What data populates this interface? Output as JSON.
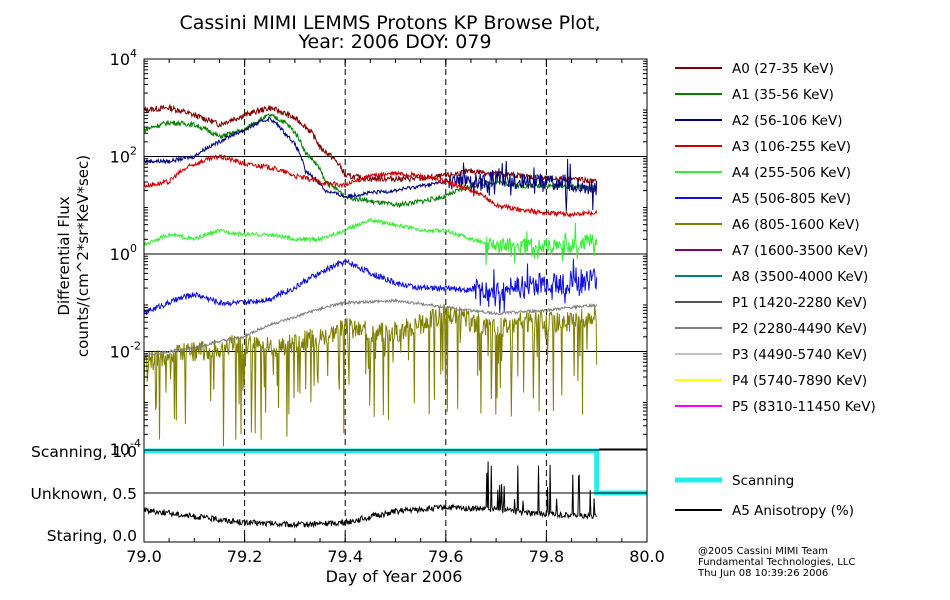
{
  "title_line1": "Cassini MIMI LEMMS Protons KP Browse Plot,",
  "title_line2": "Year: 2006 DOY: 079",
  "credits": [
    "@2005 Cassini MIMI Team",
    "Fundamental Technologies, LLC",
    "Thu Jun 08 10:39:26 2006"
  ],
  "chart_data": [
    {
      "type": "line",
      "ylabel_line1": "Differential Flux",
      "ylabel_line2": "counts/(cm^2*sr*KeV*sec)",
      "yscale": "log",
      "ylim": [
        0.0001,
        10000
      ],
      "xlim": [
        79.0,
        80.0
      ],
      "grid": true,
      "vertical_dashed_at": [
        79.2,
        79.4,
        79.6,
        79.8
      ],
      "horizontal_lines_at": [
        100,
        1,
        0.01
      ],
      "legend_placement": "right",
      "ytick_labels": [
        {
          "value": 10000,
          "base": "10",
          "exp": "4"
        },
        {
          "value": 100,
          "base": "10",
          "exp": "2"
        },
        {
          "value": 1,
          "base": "10",
          "exp": "0"
        },
        {
          "value": 0.01,
          "base": "10",
          "exp": "-2"
        },
        {
          "value": 0.0001,
          "base": "10",
          "exp": "-4"
        }
      ],
      "series": [
        {
          "name": "A0 (27-35 KeV)",
          "color": "#7f0000",
          "noise": 0.06,
          "x": [
            79.0,
            79.05,
            79.1,
            79.15,
            79.2,
            79.25,
            79.3,
            79.35,
            79.4,
            79.45,
            79.5,
            79.55,
            79.6,
            79.65,
            79.7,
            79.75,
            79.8,
            79.85,
            79.9
          ],
          "y": [
            900,
            1000,
            700,
            450,
            700,
            1000,
            600,
            150,
            40,
            35,
            35,
            35,
            40,
            50,
            45,
            40,
            35,
            35,
            30
          ]
        },
        {
          "name": "A1 (35-56 KeV)",
          "color": "#007f00",
          "noise": 0.05,
          "x": [
            79.0,
            79.05,
            79.1,
            79.15,
            79.2,
            79.25,
            79.28,
            79.32,
            79.36,
            79.4,
            79.45,
            79.5,
            79.55,
            79.6,
            79.65,
            79.7,
            79.75,
            79.8,
            79.85,
            79.9
          ],
          "y": [
            350,
            500,
            450,
            250,
            350,
            700,
            500,
            120,
            30,
            15,
            12,
            10,
            12,
            15,
            25,
            30,
            25,
            25,
            25,
            22
          ]
        },
        {
          "name": "A2 (56-106 KeV)",
          "color": "#00007f",
          "noise": 0.04,
          "spiky_from": 79.6,
          "x": [
            79.0,
            79.05,
            79.1,
            79.15,
            79.2,
            79.25,
            79.28,
            79.32,
            79.36,
            79.4,
            79.45,
            79.5,
            79.55,
            79.6,
            79.65,
            79.7,
            79.75,
            79.8,
            79.85,
            79.9
          ],
          "y": [
            80,
            80,
            100,
            200,
            350,
            600,
            300,
            50,
            20,
            15,
            18,
            20,
            25,
            30,
            30,
            35,
            30,
            30,
            25,
            22
          ]
        },
        {
          "name": "A3 (106-255 KeV)",
          "color": "#cc0000",
          "noise": 0.05,
          "x": [
            79.0,
            79.05,
            79.1,
            79.15,
            79.2,
            79.25,
            79.3,
            79.35,
            79.4,
            79.45,
            79.5,
            79.55,
            79.6,
            79.65,
            79.7,
            79.75,
            79.8,
            79.85,
            79.9
          ],
          "y": [
            25,
            30,
            70,
            100,
            70,
            60,
            40,
            30,
            25,
            40,
            45,
            40,
            30,
            20,
            10,
            8,
            7,
            6.5,
            7
          ]
        },
        {
          "name": "A4 (255-506 KeV)",
          "color": "#33ee33",
          "noise": 0.04,
          "spiky_from": 79.68,
          "x": [
            79.0,
            79.05,
            79.1,
            79.15,
            79.2,
            79.25,
            79.3,
            79.35,
            79.4,
            79.45,
            79.5,
            79.55,
            79.6,
            79.65,
            79.7,
            79.75,
            79.8,
            79.85,
            79.9
          ],
          "y": [
            1.5,
            2.5,
            2,
            3,
            2.5,
            2.5,
            2,
            2,
            3,
            5,
            4,
            3,
            3,
            2,
            1.5,
            1.5,
            1.5,
            1.5,
            2
          ]
        },
        {
          "name": "A5 (506-805 KeV)",
          "color": "#1010dd",
          "noise": 0.06,
          "spiky_from": 79.65,
          "x": [
            79.0,
            79.05,
            79.1,
            79.15,
            79.2,
            79.25,
            79.3,
            79.35,
            79.4,
            79.45,
            79.5,
            79.55,
            79.6,
            79.65,
            79.7,
            79.75,
            79.8,
            79.85,
            79.9
          ],
          "y": [
            0.06,
            0.1,
            0.15,
            0.1,
            0.1,
            0.12,
            0.2,
            0.4,
            0.7,
            0.4,
            0.25,
            0.2,
            0.2,
            0.18,
            0.18,
            0.2,
            0.25,
            0.25,
            0.3
          ]
        },
        {
          "name": "A6 (805-1600 KeV)",
          "color": "#808000",
          "noise": 0.22,
          "dips": true,
          "x": [
            79.0,
            79.05,
            79.1,
            79.15,
            79.2,
            79.25,
            79.3,
            79.35,
            79.4,
            79.45,
            79.5,
            79.55,
            79.6,
            79.65,
            79.7,
            79.75,
            79.8,
            79.85,
            79.9
          ],
          "y": [
            0.006,
            0.008,
            0.01,
            0.012,
            0.015,
            0.012,
            0.015,
            0.02,
            0.03,
            0.025,
            0.025,
            0.035,
            0.06,
            0.04,
            0.03,
            0.04,
            0.04,
            0.04,
            0.06
          ]
        },
        {
          "name": "A7 (1600-3500 KeV)",
          "color": "#7f007f",
          "noise": 0,
          "hidden": true,
          "x": [],
          "y": []
        },
        {
          "name": "A8 (3500-4000 KeV)",
          "color": "#008080",
          "noise": 0,
          "hidden": true,
          "x": [],
          "y": []
        },
        {
          "name": "P1 (1420-2280 KeV)",
          "color": "#555555",
          "noise": 0,
          "hidden": true,
          "x": [],
          "y": []
        },
        {
          "name": "P2 (2280-4490 KeV)",
          "color": "#808080",
          "noise": 0.03,
          "x": [
            79.0,
            79.1,
            79.2,
            79.3,
            79.4,
            79.5,
            79.6,
            79.7,
            79.8,
            79.9
          ],
          "y": [
            0.008,
            0.012,
            0.02,
            0.05,
            0.1,
            0.11,
            0.08,
            0.06,
            0.07,
            0.09
          ]
        },
        {
          "name": "P3 (4490-5740 KeV)",
          "color": "#c0c0c0",
          "noise": 0,
          "hidden": true,
          "x": [],
          "y": []
        },
        {
          "name": "P4 (5740-7890 KeV)",
          "color": "#ffff00",
          "noise": 0,
          "hidden": true,
          "x": [],
          "y": []
        },
        {
          "name": "P5 (8310-11450 KeV)",
          "color": "#ff00ff",
          "noise": 0,
          "hidden": true,
          "x": [],
          "y": []
        }
      ]
    },
    {
      "type": "line",
      "xlabel": "Day of Year 2006",
      "xlim": [
        79.0,
        80.0
      ],
      "ylim": [
        0,
        1.1
      ],
      "xtick_labels": [
        "79.0",
        "79.2",
        "79.4",
        "79.6",
        "79.8",
        "80.0"
      ],
      "xtick_values": [
        79.0,
        79.2,
        79.4,
        79.6,
        79.8,
        80.0
      ],
      "ytick_labels": [
        {
          "text": "Scanning, 1.0",
          "value": 1.0
        },
        {
          "text": "Unknown, 0.5",
          "value": 0.5
        },
        {
          "text": "Staring, 0.0",
          "value": 0.0
        }
      ],
      "series": [
        {
          "name": "Scanning",
          "color": "#22eeee",
          "step": true,
          "x": [
            79.0,
            79.9,
            79.9,
            80.0
          ],
          "y": [
            1.0,
            1.0,
            0.5,
            0.5
          ]
        },
        {
          "name": "A5 Anisotropy (%)",
          "color": "#000000",
          "noise": 0.035,
          "spiky_from": 79.68,
          "x": [
            79.0,
            79.1,
            79.2,
            79.3,
            79.4,
            79.5,
            79.6,
            79.7,
            79.8,
            79.9
          ],
          "y": [
            0.3,
            0.22,
            0.15,
            0.12,
            0.15,
            0.28,
            0.33,
            0.3,
            0.25,
            0.22
          ]
        }
      ]
    }
  ]
}
